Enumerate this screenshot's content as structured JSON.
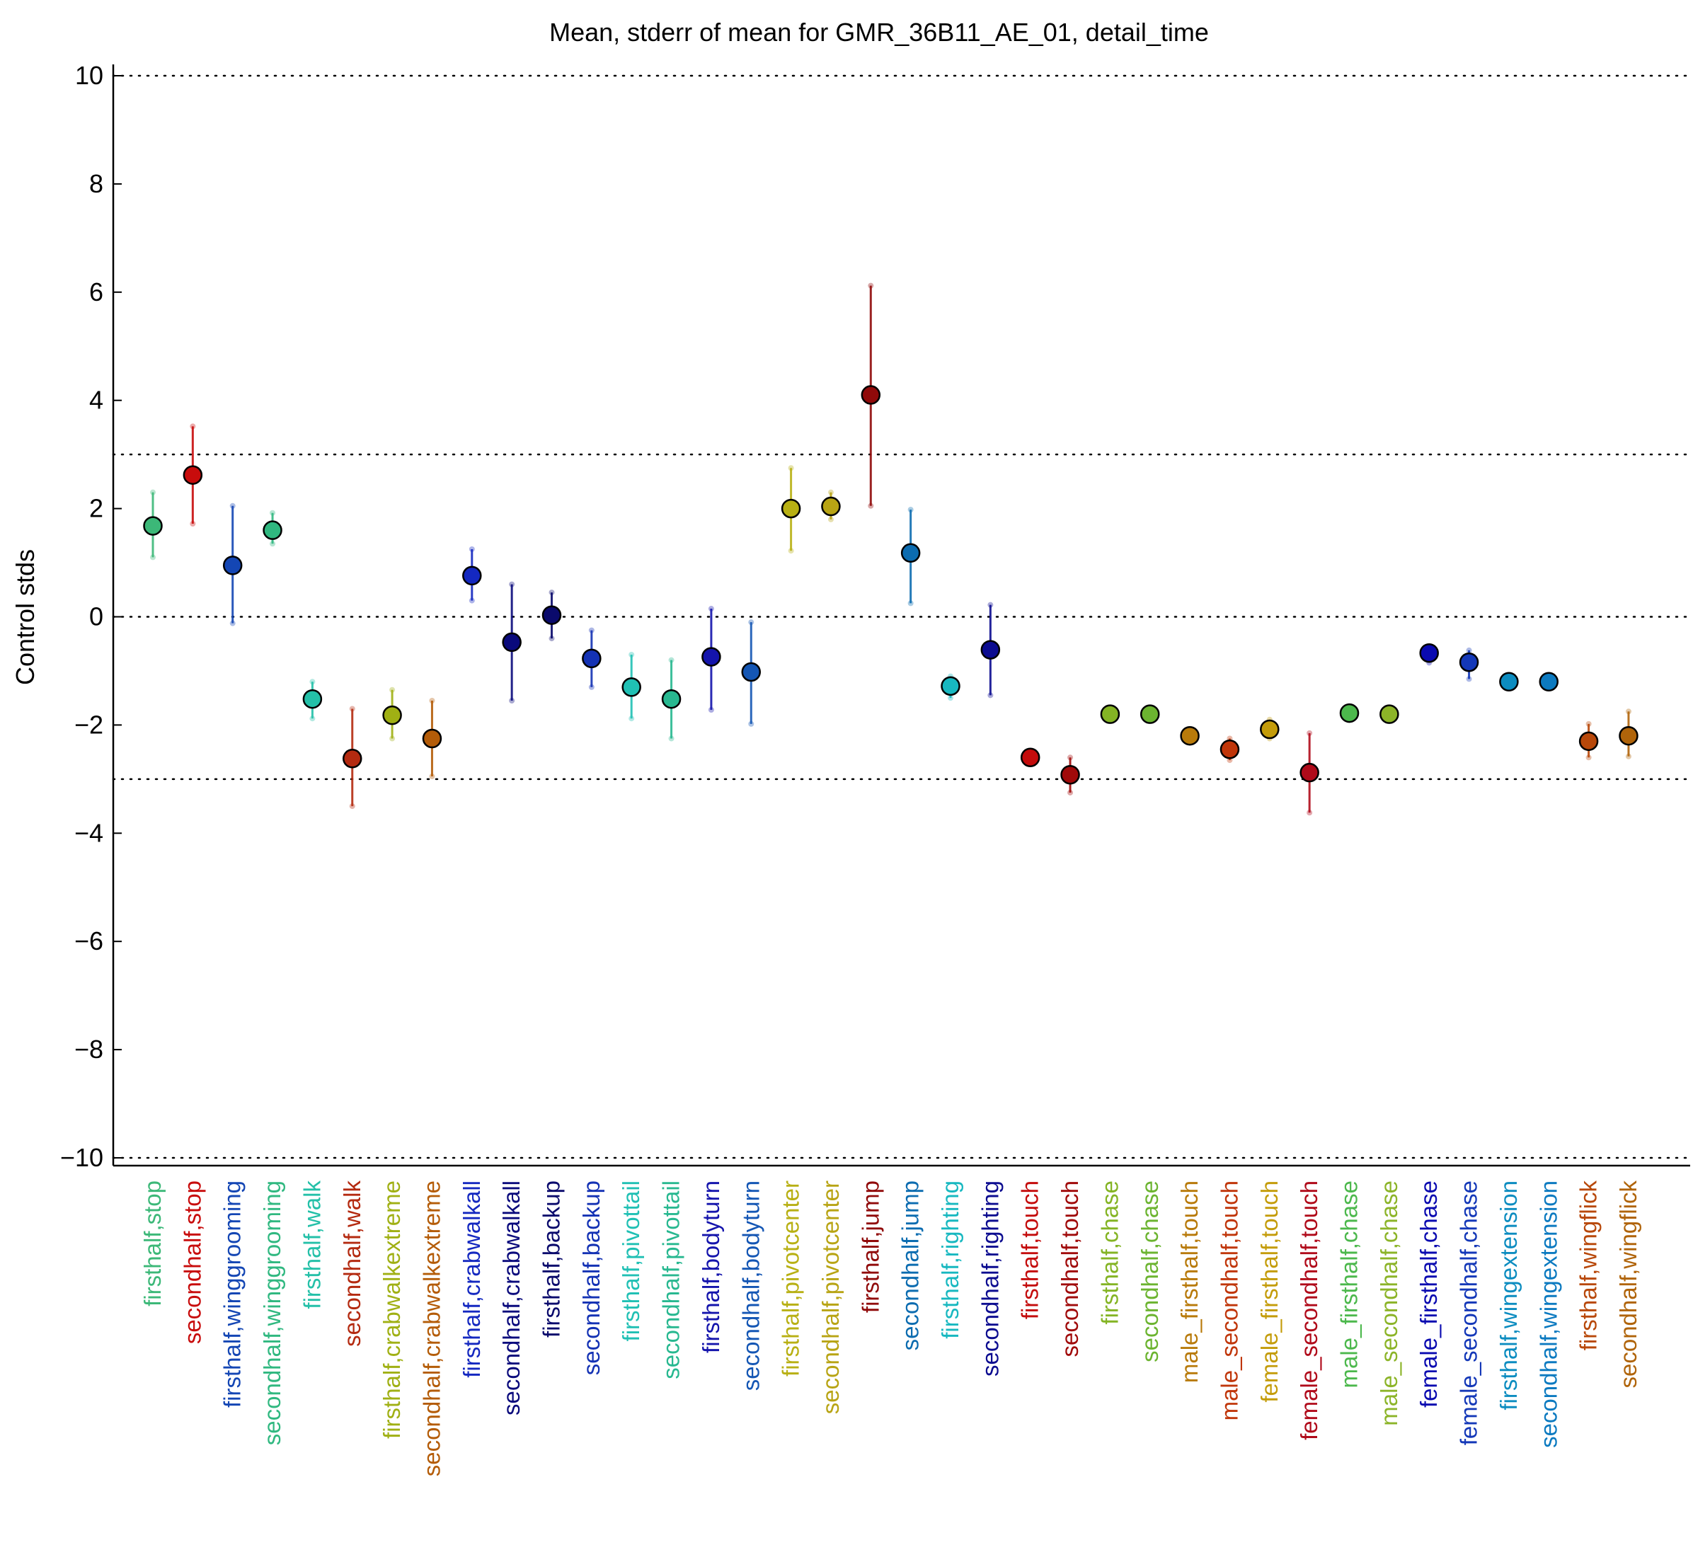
{
  "chart_data": {
    "type": "scatter",
    "title": "Mean, stderr of mean for GMR_36B11_AE_01, detail_time",
    "xlabel": "",
    "ylabel": "Control stds",
    "ylim": [
      -10,
      10
    ],
    "yticks": [
      10,
      8,
      6,
      4,
      2,
      0,
      -2,
      -4,
      -6,
      -8,
      -10
    ],
    "ytick_labels": [
      "10",
      "8",
      "6",
      "4",
      "2",
      "0",
      "−2",
      "−4",
      "−6",
      "−8",
      "−10"
    ],
    "reference_lines": [
      10,
      3,
      0,
      -3,
      -10
    ],
    "grid": false,
    "categories": [
      "firsthalf,stop",
      "secondhalf,stop",
      "firsthalf,winggrooming",
      "secondhalf,winggrooming",
      "firsthalf,walk",
      "secondhalf,walk",
      "firsthalf,crabwalkextreme",
      "secondhalf,crabwalkextreme",
      "firsthalf,crabwalkall",
      "secondhalf,crabwalkall",
      "firsthalf,backup",
      "secondhalf,backup",
      "firsthalf,pivottail",
      "secondhalf,pivottail",
      "firsthalf,bodyturn",
      "secondhalf,bodyturn",
      "firsthalf,pivotcenter",
      "secondhalf,pivotcenter",
      "firsthalf,jump",
      "secondhalf,jump",
      "firsthalf,righting",
      "secondhalf,righting",
      "firsthalf,touch",
      "secondhalf,touch",
      "firsthalf,chase",
      "secondhalf,chase",
      "male_firsthalf,touch",
      "male_secondhalf,touch",
      "female_firsthalf,touch",
      "female_secondhalf,touch",
      "male_firsthalf,chase",
      "male_secondhalf,chase",
      "female_firsthalf,chase",
      "female_secondhalf,chase",
      "firsthalf,wingextension",
      "secondhalf,wingextension",
      "firsthalf,wingflick",
      "secondhalf,wingflick"
    ],
    "mean": [
      1.68,
      2.62,
      0.95,
      1.6,
      -1.52,
      -2.62,
      -1.82,
      -2.25,
      0.76,
      -0.47,
      0.03,
      -0.77,
      -1.3,
      -1.52,
      -0.74,
      -1.02,
      2.0,
      2.04,
      4.1,
      1.18,
      -1.28,
      -0.61,
      -2.6,
      -2.92,
      -1.8,
      -1.8,
      -2.2,
      -2.45,
      -2.08,
      -2.88,
      -1.78,
      -1.8,
      -0.67,
      -0.84,
      -1.2,
      -1.2,
      -2.3,
      -2.2
    ],
    "stderr_low": [
      1.1,
      1.72,
      -0.12,
      1.35,
      -1.88,
      -3.5,
      -2.25,
      -2.95,
      0.3,
      -1.55,
      -0.4,
      -1.3,
      -1.88,
      -2.25,
      -1.72,
      -1.98,
      1.22,
      1.8,
      2.05,
      0.25,
      -1.5,
      -1.45,
      -2.65,
      -3.25,
      -1.82,
      -1.82,
      -2.25,
      -2.65,
      -2.25,
      -3.62,
      -1.8,
      -1.82,
      -0.85,
      -1.15,
      -1.25,
      -1.25,
      -2.6,
      -2.58
    ],
    "stderr_high": [
      2.3,
      3.52,
      2.05,
      1.92,
      -1.2,
      -1.7,
      -1.35,
      -1.55,
      1.25,
      0.6,
      0.45,
      -0.25,
      -0.7,
      -0.8,
      0.15,
      -0.1,
      2.75,
      2.3,
      6.12,
      1.98,
      -1.1,
      0.22,
      -2.55,
      -2.6,
      -1.78,
      -1.78,
      -2.15,
      -2.25,
      -1.9,
      -2.15,
      -1.76,
      -1.78,
      -0.55,
      -0.62,
      -1.15,
      -1.15,
      -1.98,
      -1.75
    ],
    "colors": [
      "#3cb878",
      "#c80c0c",
      "#1446b4",
      "#30b880",
      "#24c0a8",
      "#b42a10",
      "#a0b014",
      "#b45c08",
      "#1428c0",
      "#0a0a7c",
      "#0a0a6c",
      "#1432b4",
      "#20c0b4",
      "#28b890",
      "#1414ac",
      "#1456b4",
      "#b8b014",
      "#b8a414",
      "#900a0a",
      "#0c6cb0",
      "#18b8c0",
      "#0c0c90",
      "#c40c0c",
      "#a00a0a",
      "#84b424",
      "#6cb430",
      "#b87a0a",
      "#c0360a",
      "#c49c0a",
      "#b00a1a",
      "#4cb84c",
      "#8cb428",
      "#0a0ab0",
      "#1438b8",
      "#0c8cc0",
      "#0c7ac0",
      "#b8480a",
      "#b0640a"
    ]
  }
}
